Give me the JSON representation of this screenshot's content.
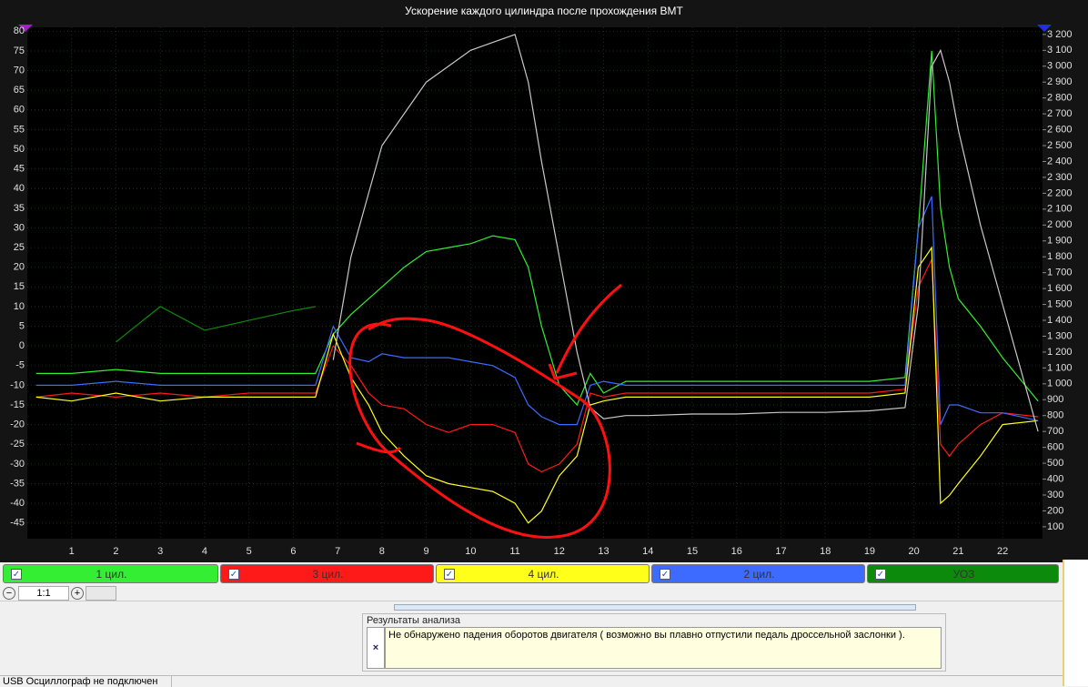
{
  "chart_data": {
    "type": "line",
    "title": "Ускорение каждого цилиндра после прохождения ВМТ",
    "x": [
      0.2,
      1,
      2,
      3,
      4,
      5,
      6,
      6.5,
      6.9,
      7.3,
      7.7,
      8,
      8.5,
      9,
      9.5,
      10,
      10.5,
      11,
      11.3,
      11.6,
      12,
      12.4,
      12.7,
      13,
      13.5,
      14,
      15,
      16,
      17,
      18,
      19,
      19.8,
      20.1,
      20.4,
      20.6,
      20.8,
      21,
      21.5,
      22,
      22.8
    ],
    "series": [
      {
        "name": "1 цил.",
        "color": "#33ee33",
        "values": [
          -7,
          -7,
          -6,
          -7,
          -7,
          -7,
          -7,
          -7,
          3,
          8,
          12,
          15,
          20,
          24,
          25,
          26,
          28,
          27,
          20,
          5,
          -10,
          -15,
          -7,
          -12,
          -9,
          -9,
          -9,
          -9,
          -9,
          -9,
          -9,
          -8,
          30,
          75,
          35,
          20,
          12,
          5,
          -3,
          -14
        ]
      },
      {
        "name": "3 цил.",
        "color": "#ff1a1a",
        "values": [
          -13,
          -12,
          -13,
          -12,
          -13,
          -12,
          -12,
          -12,
          0,
          -5,
          -12,
          -15,
          -16,
          -20,
          -22,
          -20,
          -20,
          -22,
          -30,
          -32,
          -30,
          -25,
          -12,
          -13,
          -12,
          -12,
          -12,
          -12,
          -12,
          -12,
          -12,
          -11,
          15,
          22,
          -25,
          -28,
          -25,
          -20,
          -17,
          -18
        ]
      },
      {
        "name": "4 цил.",
        "color": "#ffff1a",
        "values": [
          -13,
          -14,
          -12,
          -14,
          -13,
          -13,
          -13,
          -13,
          3,
          -8,
          -15,
          -22,
          -28,
          -33,
          -35,
          -36,
          -37,
          -40,
          -45,
          -42,
          -33,
          -28,
          -15,
          -14,
          -13,
          -13,
          -13,
          -13,
          -13,
          -13,
          -13,
          -12,
          20,
          25,
          -40,
          -38,
          -35,
          -28,
          -20,
          -19
        ]
      },
      {
        "name": "2 цил.",
        "color": "#3d6bff",
        "values": [
          -10,
          -10,
          -9,
          -10,
          -10,
          -10,
          -10,
          -10,
          5,
          -3,
          -4,
          -2,
          -3,
          -3,
          -3,
          -4,
          -5,
          -8,
          -15,
          -18,
          -20,
          -20,
          -10,
          -9,
          -10,
          -10,
          -10,
          -10,
          -10,
          -10,
          -10,
          -10,
          30,
          38,
          -20,
          -15,
          -15,
          -17,
          -17,
          -19
        ]
      },
      {
        "name": "УОЗ",
        "color": "#0c8a0c",
        "values": [
          null,
          null,
          1,
          10,
          4,
          6.5,
          9,
          10,
          null,
          null,
          null,
          null,
          null,
          null,
          null,
          null,
          null,
          null,
          null,
          null,
          null,
          null,
          null,
          null,
          null,
          null,
          null,
          null,
          null,
          null,
          null,
          null,
          null,
          null,
          null,
          null,
          null,
          null,
          null,
          null
        ]
      },
      {
        "color": "#c8c8c8",
        "axis": "y2",
        "values": [
          null,
          null,
          null,
          null,
          null,
          null,
          null,
          null,
          1150,
          1800,
          2200,
          2500,
          2700,
          2900,
          3000,
          3100,
          3150,
          3200,
          2900,
          2400,
          1800,
          1200,
          850,
          780,
          800,
          800,
          810,
          810,
          820,
          820,
          830,
          850,
          1500,
          3000,
          3100,
          2900,
          2600,
          2000,
          1500,
          700
        ]
      }
    ],
    "xlim": [
      0,
      22.9
    ],
    "xticks": [
      1,
      2,
      3,
      4,
      5,
      6,
      7,
      8,
      9,
      10,
      11,
      12,
      13,
      14,
      15,
      16,
      17,
      18,
      19,
      20,
      21,
      22
    ],
    "ylim": [
      -49,
      81
    ],
    "yticks": [
      -45,
      -40,
      -35,
      -30,
      -25,
      -20,
      -15,
      -10,
      -5,
      0,
      5,
      10,
      15,
      20,
      25,
      30,
      35,
      40,
      45,
      50,
      55,
      60,
      65,
      70,
      75,
      80
    ],
    "y2lim": [
      25,
      3245
    ],
    "y2ticks": [
      100,
      200,
      300,
      400,
      500,
      600,
      700,
      800,
      900,
      {
        "value": 1000,
        "label": "1 000"
      },
      {
        "value": 1100,
        "label": "1 100"
      },
      {
        "value": 1200,
        "label": "1 200"
      },
      {
        "value": 1300,
        "label": "1 300"
      },
      {
        "value": 1400,
        "label": "1 400"
      },
      {
        "value": 1500,
        "label": "1 500"
      },
      {
        "value": 1600,
        "label": "1 600"
      },
      {
        "value": 1700,
        "label": "1 700"
      },
      {
        "value": 1800,
        "label": "1 800"
      },
      {
        "value": 1900,
        "label": "1 900"
      },
      {
        "value": 2000,
        "label": "2 000"
      },
      {
        "value": 2100,
        "label": "2 100"
      },
      {
        "value": 2200,
        "label": "2 200"
      },
      {
        "value": 2300,
        "label": "2 300"
      },
      {
        "value": 2400,
        "label": "2 400"
      },
      {
        "value": 2500,
        "label": "2 500"
      },
      {
        "value": 2600,
        "label": "2 600"
      },
      {
        "value": 2700,
        "label": "2 700"
      },
      {
        "value": 2800,
        "label": "2 800"
      },
      {
        "value": 2900,
        "label": "2 900"
      },
      {
        "value": 3000,
        "label": "3 000"
      },
      {
        "value": 3100,
        "label": "3 100"
      },
      {
        "value": 3200,
        "label": "3 200"
      }
    ],
    "grid": true
  },
  "ui": {
    "zoom": "1:1",
    "results_title": "Результаты анализа",
    "message": "Не обнаружено падения оборотов двигателя ( возможно вы плавно отпустили педаль дроссельной заслонки ).",
    "status": "USB Осциллограф не подключен"
  }
}
